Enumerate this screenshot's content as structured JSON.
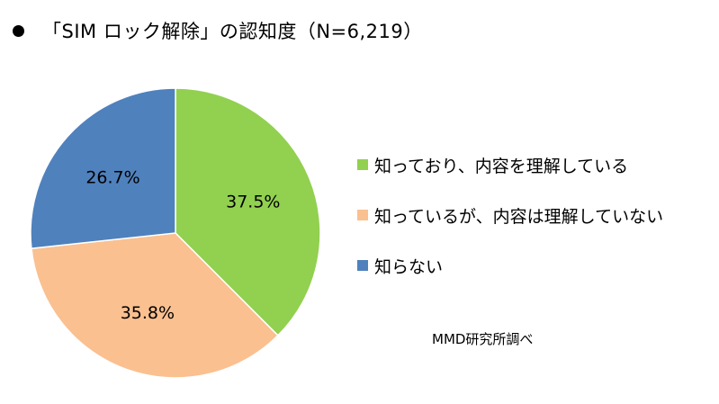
{
  "title": "「SIM ロック解除」の認知度（N=6,219）",
  "chart_data": {
    "type": "pie",
    "title": "「SIM ロック解除」の認知度（N=6,219）",
    "start_angle_deg": 0,
    "direction": "clockwise",
    "legend_position": "right",
    "slices": [
      {
        "label": "知っており、内容を理解している",
        "value": 37.5,
        "value_label": "37.5%",
        "color": "#92d050"
      },
      {
        "label": "知っているが、内容は理解していない",
        "value": 35.8,
        "value_label": "35.8%",
        "color": "#fac090"
      },
      {
        "label": "知らない",
        "value": 26.7,
        "value_label": "26.7%",
        "color": "#4f81bd"
      }
    ]
  },
  "source_note": "MMD研究所調べ"
}
